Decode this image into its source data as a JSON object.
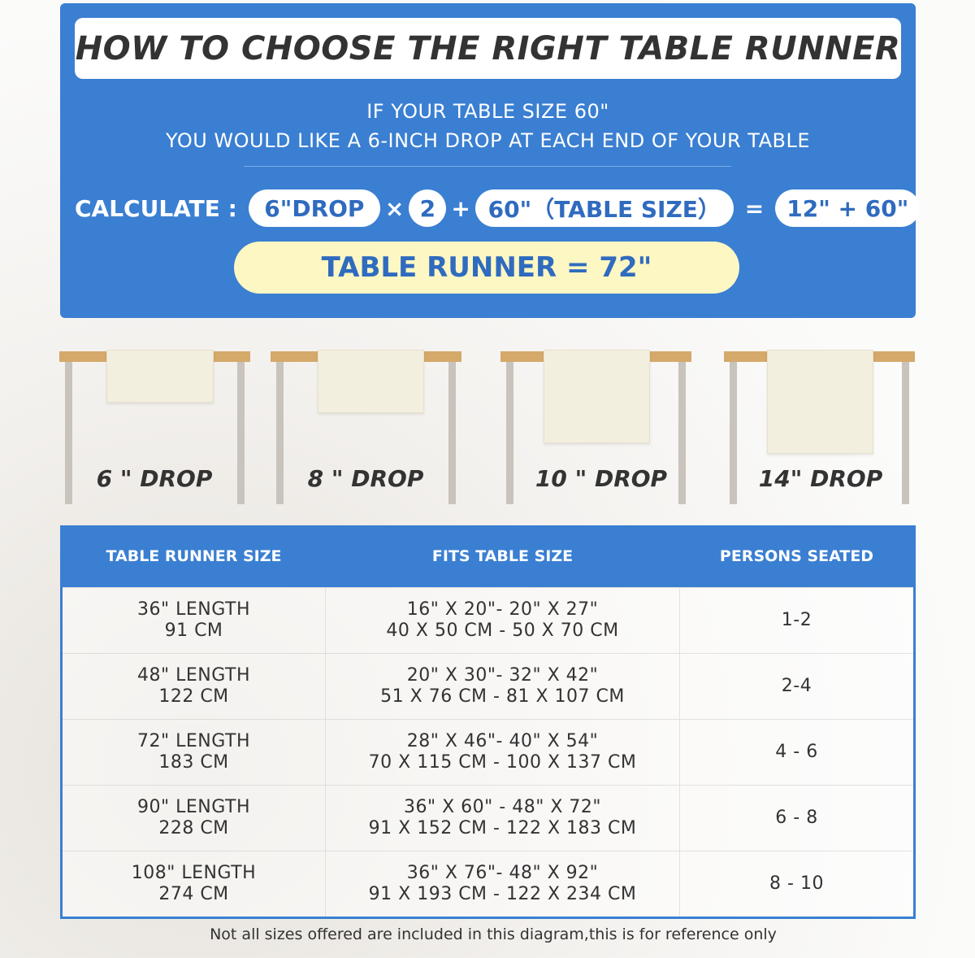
{
  "header": {
    "title": "HOW TO CHOOSE THE RIGHT TABLE RUNNER",
    "line1": "IF YOUR TABLE SIZE 60\"",
    "line2": "YOU WOULD LIKE A 6-INCH DROP AT EACH END OF YOUR TABLE"
  },
  "calc": {
    "label": "CALCULATE :",
    "drop": "6\"DROP",
    "times": "×",
    "factor": "2",
    "plus": "+",
    "table": "60\"（TABLE SIZE）",
    "equals": "=",
    "sum": "12\" + 60\"",
    "result": "TABLE RUNNER = 72\""
  },
  "drops": [
    {
      "label": "6 \" DROP"
    },
    {
      "label": "8 \" DROP"
    },
    {
      "label": "10 \" DROP"
    },
    {
      "label": "14\" DROP"
    }
  ],
  "table": {
    "headers": [
      "TABLE RUNNER SIZE",
      "FITS TABLE SIZE",
      "PERSONS SEATED"
    ],
    "rows": [
      {
        "size": [
          "36\" LENGTH",
          "91 CM"
        ],
        "fits": [
          "16\" X 20\"- 20\" X 27\"",
          "40 X 50 CM - 50 X 70 CM"
        ],
        "persons": "1-2"
      },
      {
        "size": [
          "48\" LENGTH",
          "122 CM"
        ],
        "fits": [
          "20\" X 30\"- 32\" X 42\"",
          "51 X 76 CM - 81 X 107 CM"
        ],
        "persons": "2-4"
      },
      {
        "size": [
          "72\" LENGTH",
          "183 CM"
        ],
        "fits": [
          "28\" X 46\"- 40\" X 54\"",
          "70 X 115 CM - 100 X 137 CM"
        ],
        "persons": "4 - 6"
      },
      {
        "size": [
          "90\" LENGTH",
          "228 CM"
        ],
        "fits": [
          "36\" X 60\" - 48\" X 72\"",
          "91 X 152 CM - 122 X 183 CM"
        ],
        "persons": "6 - 8"
      },
      {
        "size": [
          "108\" LENGTH",
          "274 CM"
        ],
        "fits": [
          "36\" X 76\"- 48\" X 92\"",
          "91 X 193 CM - 122 X 234 CM"
        ],
        "persons": "8 - 10"
      }
    ]
  },
  "footer": "Not all sizes offered are included in this diagram,this is for reference only",
  "colors": {
    "blue": "#3a7fd2",
    "yellow": "#fdf7c3",
    "wood": "#d4a96a"
  }
}
